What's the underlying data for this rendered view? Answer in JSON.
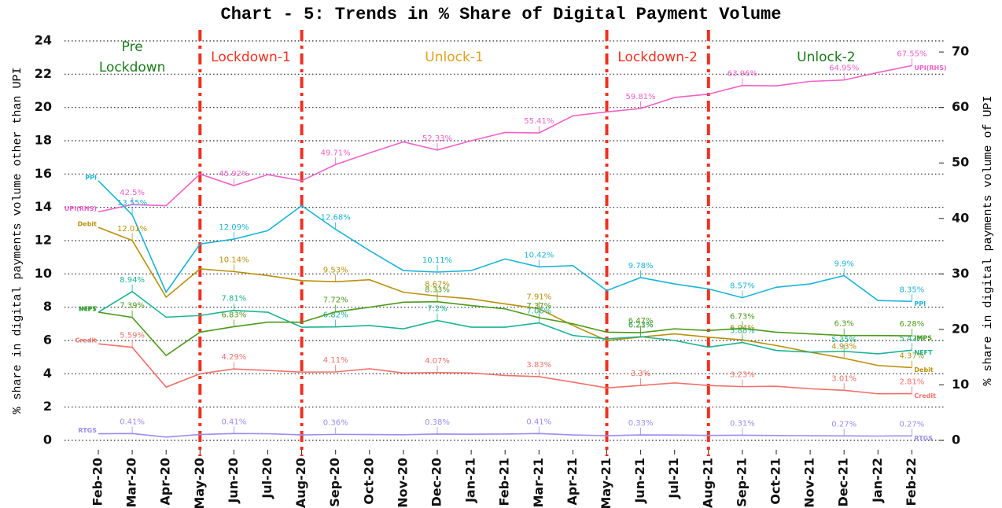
{
  "chart_data": {
    "type": "line",
    "title": "Chart - 5: Trends in % Share of Digital Payment Volume",
    "y_label": "% share in digital payments volume other than UPI",
    "y2_label": "% share in digital payments volume of UPI",
    "categories": [
      "Feb-20",
      "Mar-20",
      "Apr-20",
      "May-20",
      "Jun-20",
      "Jul-20",
      "Aug-20",
      "Sep-20",
      "Oct-20",
      "Nov-20",
      "Dec-20",
      "Jan-21",
      "Feb-21",
      "Mar-21",
      "Apr-21",
      "May-21",
      "Jun-21",
      "Jul-21",
      "Aug-21",
      "Sep-21",
      "Oct-21",
      "Nov-21",
      "Dec-21",
      "Jan-22",
      "Feb-22"
    ],
    "ylim": [
      0,
      24
    ],
    "yticks": [
      0,
      2,
      4,
      6,
      8,
      10,
      12,
      14,
      16,
      18,
      20,
      22,
      24
    ],
    "y2lim": [
      0,
      72
    ],
    "y2ticks": [
      0,
      10,
      20,
      30,
      40,
      50,
      60,
      70
    ],
    "grid": true,
    "vlines": [
      "May-20",
      "Aug-20",
      "May-21",
      "Aug-21"
    ],
    "vline_color": "#f03020",
    "phases": [
      {
        "label": "Pre Lockdown",
        "color": "#1a7a1a"
      },
      {
        "label": "Lockdown-1",
        "color": "#f03020"
      },
      {
        "label": "Unlock-1",
        "color": "#e0a020"
      },
      {
        "label": "Lockdown-2",
        "color": "#f03020"
      },
      {
        "label": "Unlock-2",
        "color": "#1a7a1a"
      }
    ],
    "series": [
      {
        "name": "UPI(RHS)",
        "color": "#f060c8",
        "axis": "y2",
        "values": [
          41.2,
          42.5,
          42.3,
          48,
          45.92,
          47.9,
          46.8,
          49.71,
          51.8,
          53.8,
          52.33,
          54,
          55.5,
          55.41,
          58.5,
          59.2,
          59.81,
          61.8,
          62.4,
          63.96,
          63.9,
          64.7,
          64.95,
          66.3,
          67.55
        ],
        "value_labels": [
          null,
          "42.5%",
          null,
          null,
          "45.92%",
          null,
          null,
          "49.71%",
          null,
          null,
          "52.33%",
          null,
          null,
          "55.41%",
          null,
          null,
          "59.81%",
          null,
          null,
          "63.96%",
          null,
          null,
          "64.95%",
          null,
          "67.55%"
        ]
      },
      {
        "name": "PPI",
        "color": "#1ab3d6",
        "values": [
          15.6,
          13.55,
          8.9,
          11.8,
          12.09,
          12.6,
          14.1,
          12.68,
          11.4,
          10.2,
          10.11,
          10.2,
          10.9,
          10.42,
          10.5,
          9.0,
          9.78,
          9.4,
          9.1,
          8.57,
          9.2,
          9.4,
          9.9,
          8.4,
          8.35
        ],
        "value_labels": [
          null,
          "13.55%",
          null,
          null,
          "12.09%",
          null,
          null,
          "12.68%",
          null,
          null,
          "10.11%",
          null,
          null,
          "10.42%",
          null,
          null,
          "9.78%",
          null,
          null,
          "8.57%",
          null,
          null,
          "9.9%",
          null,
          "8.35%"
        ]
      },
      {
        "name": "Debit",
        "color": "#b8900a",
        "values": [
          12.8,
          12.01,
          8.6,
          10.3,
          10.14,
          9.9,
          9.6,
          9.53,
          9.65,
          8.9,
          8.67,
          8.5,
          8.2,
          7.91,
          6.9,
          6.0,
          6.21,
          6.4,
          6.2,
          6.04,
          5.7,
          5.3,
          4.93,
          4.5,
          4.37
        ],
        "value_labels": [
          null,
          "12.01%",
          null,
          null,
          "10.14%",
          null,
          null,
          "9.53%",
          null,
          null,
          "8.67%",
          null,
          null,
          "7.91%",
          null,
          null,
          "6.21%",
          null,
          null,
          "6.04%",
          null,
          null,
          "4.93%",
          null,
          "4.37%"
        ]
      },
      {
        "name": "NEFT",
        "color": "#1bb394",
        "values": [
          7.7,
          8.94,
          7.4,
          7.5,
          7.81,
          7.7,
          6.8,
          6.82,
          6.9,
          6.7,
          7.2,
          6.8,
          6.8,
          7.06,
          6.3,
          6.1,
          6.23,
          6.0,
          5.6,
          5.88,
          5.4,
          5.3,
          5.35,
          5.2,
          5.42
        ],
        "value_labels": [
          null,
          "8.94%",
          null,
          null,
          "7.81%",
          null,
          null,
          "6.82%",
          null,
          null,
          "7.2%",
          null,
          null,
          "7.06%",
          null,
          null,
          "6.23%",
          null,
          null,
          "5.88%",
          null,
          null,
          "5.35%",
          null,
          "5.42%"
        ]
      },
      {
        "name": "IMPS",
        "color": "#4c9a1a",
        "values": [
          7.7,
          7.39,
          5.1,
          6.5,
          6.83,
          7.1,
          7.1,
          7.72,
          8.0,
          8.3,
          8.33,
          8.1,
          7.9,
          7.37,
          7.0,
          6.5,
          6.47,
          6.7,
          6.6,
          6.73,
          6.5,
          6.4,
          6.3,
          6.3,
          6.28
        ],
        "value_labels": [
          null,
          "7.39%",
          null,
          null,
          "6.83%",
          null,
          null,
          "7.72%",
          null,
          null,
          "8.33%",
          null,
          null,
          "7.37%",
          null,
          null,
          "6.47%",
          null,
          null,
          "6.73%",
          null,
          null,
          "6.3%",
          null,
          "6.28%"
        ]
      },
      {
        "name": "Credit",
        "color": "#f0706a",
        "values": [
          5.8,
          5.59,
          3.2,
          4.0,
          4.29,
          4.2,
          4.1,
          4.11,
          4.3,
          4.05,
          4.07,
          4.05,
          3.9,
          3.83,
          3.5,
          3.15,
          3.3,
          3.45,
          3.3,
          3.23,
          3.25,
          3.1,
          3.01,
          2.8,
          2.81
        ],
        "value_labels": [
          null,
          "5.59%",
          null,
          null,
          "4.29%",
          null,
          null,
          "4.11%",
          null,
          null,
          "4.07%",
          null,
          null,
          "3.83%",
          null,
          null,
          "3.3%",
          null,
          null,
          "3.23%",
          null,
          null,
          "3.01%",
          null,
          "2.81%"
        ]
      },
      {
        "name": "RTGS",
        "color": "#9b8cf0",
        "values": [
          0.4,
          0.41,
          0.2,
          0.35,
          0.41,
          0.4,
          0.33,
          0.36,
          0.35,
          0.34,
          0.38,
          0.37,
          0.38,
          0.41,
          0.33,
          0.28,
          0.33,
          0.32,
          0.3,
          0.31,
          0.29,
          0.28,
          0.27,
          0.26,
          0.27
        ],
        "value_labels": [
          null,
          "0.41%",
          null,
          null,
          "0.41%",
          null,
          null,
          "0.36%",
          null,
          null,
          "0.38%",
          null,
          null,
          "0.41%",
          null,
          null,
          "0.33%",
          null,
          null,
          "0.31%",
          null,
          null,
          "0.27%",
          null,
          "0.27%"
        ]
      }
    ]
  }
}
